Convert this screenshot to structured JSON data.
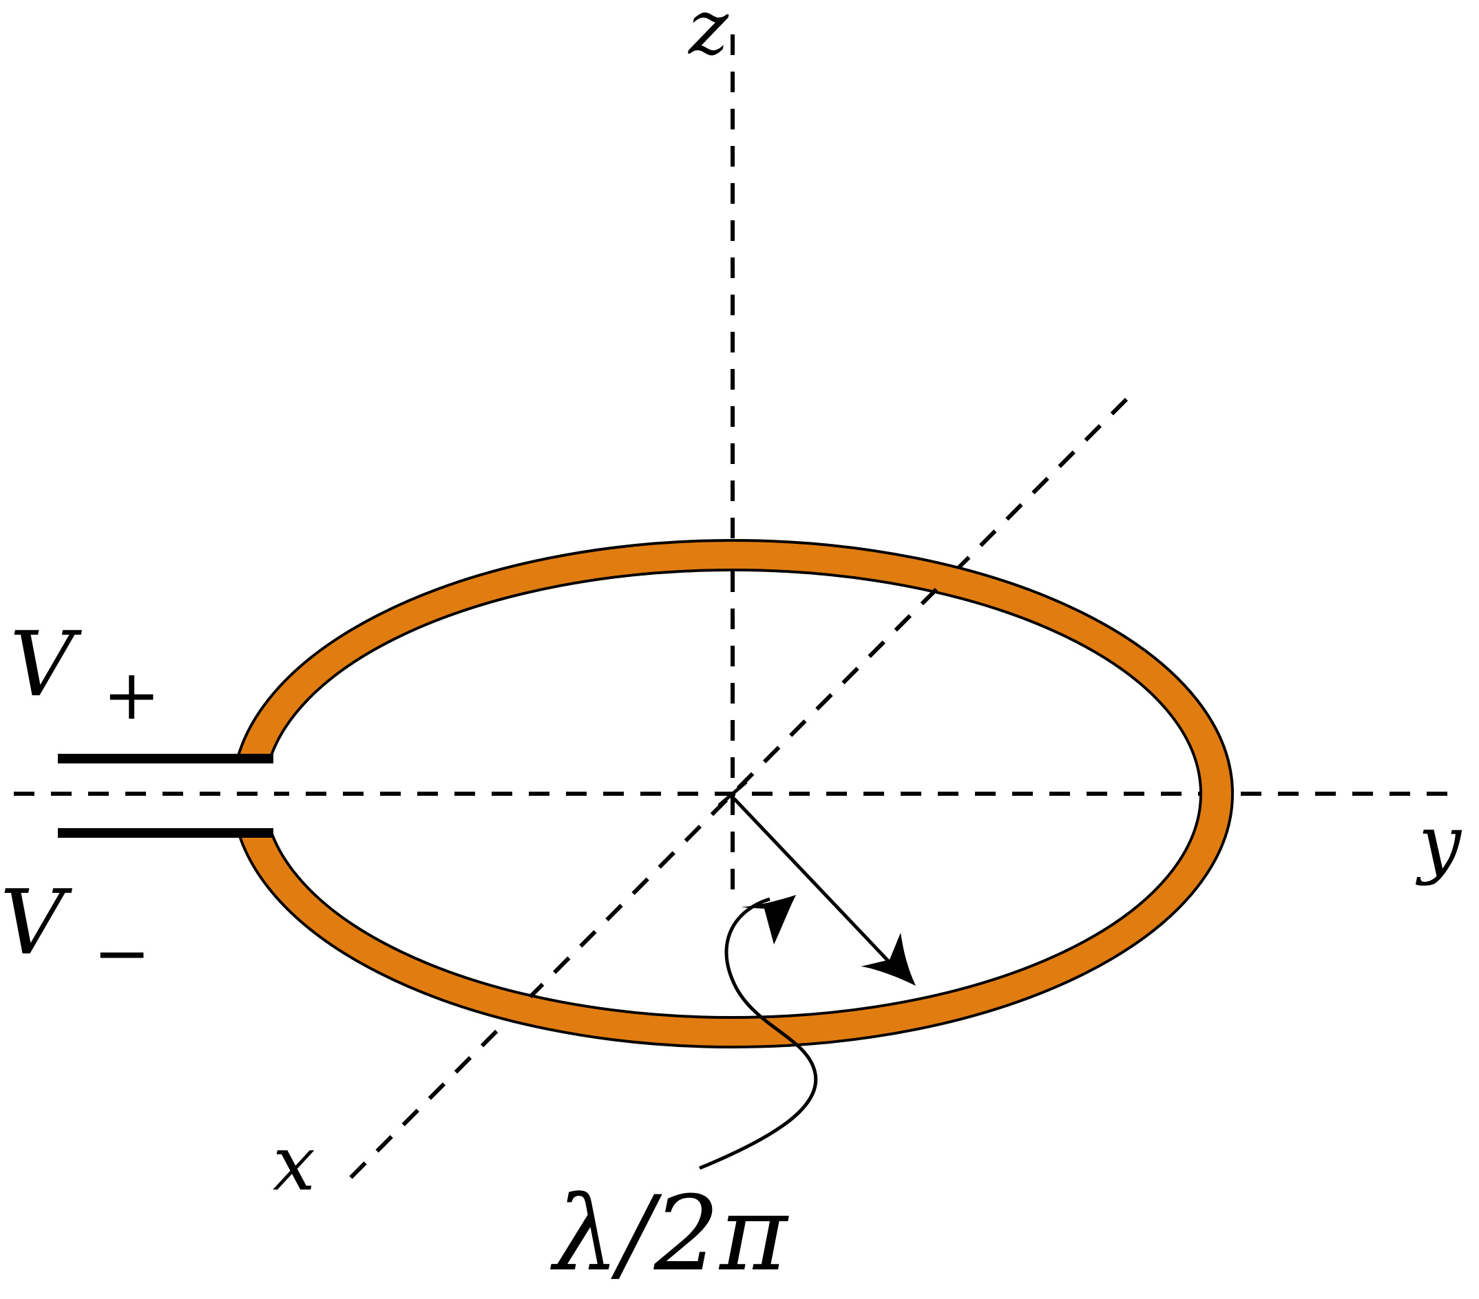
{
  "diagram": {
    "axes": {
      "x_label": "x",
      "y_label": "y",
      "z_label": "z"
    },
    "terminals": {
      "positive_symbol": "V",
      "positive_subscript": "+",
      "negative_symbol": "V",
      "negative_subscript": "−"
    },
    "radius_label": "λ/2π",
    "colors": {
      "loop": "#e07c10",
      "lines": "#000000",
      "background": "#ffffff"
    }
  }
}
